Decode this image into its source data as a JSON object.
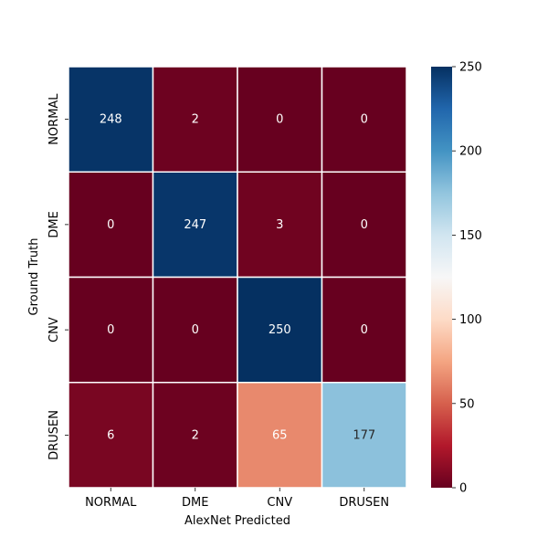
{
  "chart_data": {
    "type": "heatmap",
    "title": "",
    "xlabel": "AlexNet Predicted",
    "ylabel": "Ground Truth",
    "x_categories": [
      "NORMAL",
      "DME",
      "CNV",
      "DRUSEN"
    ],
    "y_categories": [
      "NORMAL",
      "DME",
      "CNV",
      "DRUSEN"
    ],
    "values": [
      [
        248,
        2,
        0,
        0
      ],
      [
        0,
        247,
        3,
        0
      ],
      [
        0,
        0,
        250,
        0
      ],
      [
        6,
        2,
        65,
        177
      ]
    ],
    "colorbar": {
      "colormap": "RdBu",
      "vmin": 0,
      "vmax": 250,
      "ticks": [
        0,
        50,
        100,
        150,
        200,
        250
      ]
    },
    "cell_border_color": "#ffffff"
  }
}
